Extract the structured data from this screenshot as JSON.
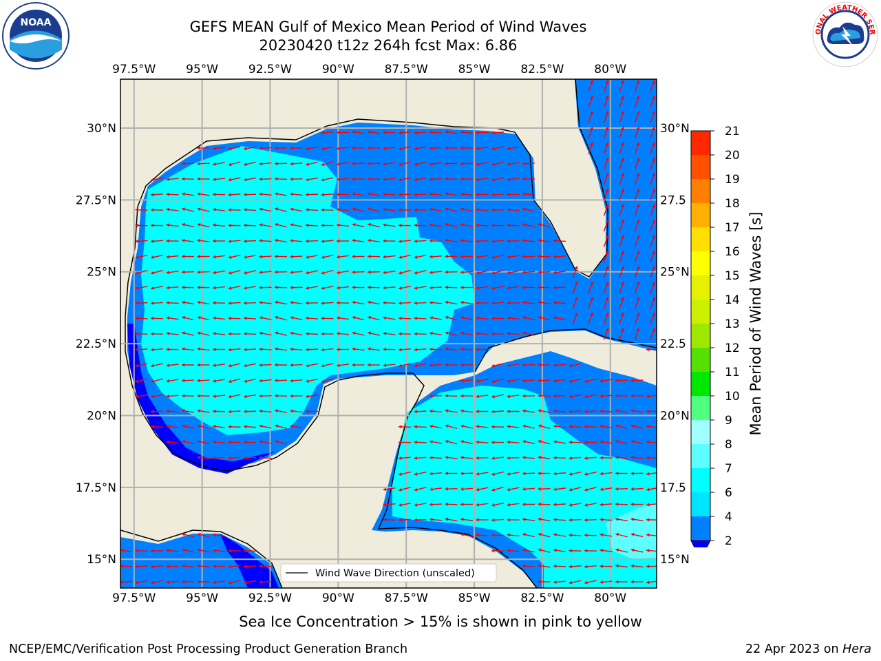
{
  "header": {
    "title_line1": "GEFS MEAN Gulf of Mexico Mean Period of Wind Waves",
    "title_line2": "20230420 t12z 264h fcst   Max: 6.86"
  },
  "logos": {
    "noaa": {
      "text": "NOAA",
      "ring_text": "NATIONAL OCEANIC AND ATMOSPHERIC ADMINISTRATION · U.S. DEPARTMENT OF COMMERCE"
    },
    "nws": {
      "ring_text": "NATIONAL WEATHER SERVICE"
    }
  },
  "map": {
    "lon_labels": [
      "97.5°W",
      "95°W",
      "92.5°W",
      "90°W",
      "87.5°W",
      "85°W",
      "82.5°W",
      "80°W"
    ],
    "lon_values": [
      -97.5,
      -95,
      -92.5,
      -90,
      -87.5,
      -85,
      -82.5,
      -80
    ],
    "lat_labels": [
      "30°N",
      "27.5°N",
      "25°N",
      "22.5°N",
      "20°N",
      "17.5°N",
      "15°N"
    ],
    "lat_labels_right": [
      "30°N",
      "27.5",
      "25°N",
      "22.5",
      "20°N",
      "17.5",
      "15°N"
    ],
    "lat_values": [
      30,
      27.5,
      25,
      22.5,
      20,
      17.5,
      15
    ],
    "extent": {
      "lon_min": -98,
      "lon_max": -78.3,
      "lat_min": 14,
      "lat_max": 31.7
    },
    "legend_text": "Wind Wave Direction (unscaled)",
    "arrow_color": "#ff0000",
    "land_color": "#efecdb"
  },
  "colorbar": {
    "label": "Mean Period of Wind Waves [s]",
    "ticks": [
      "2",
      "4",
      "6",
      "7",
      "8",
      "9",
      "10",
      "11",
      "12",
      "13",
      "14",
      "15",
      "16",
      "17",
      "18",
      "19",
      "20",
      "21"
    ],
    "colors": [
      "#0080ff",
      "#00e5ff",
      "#00ffff",
      "#5cffff",
      "#a0ffff",
      "#50ff80",
      "#00e800",
      "#55e000",
      "#9ee800",
      "#ccf000",
      "#e6f000",
      "#ffff00",
      "#ffe000",
      "#ffb000",
      "#ff8000",
      "#ff5000",
      "#ff2800"
    ],
    "extend_low_color": "#0000ff",
    "extend_high_color": "#ff0000"
  },
  "caption": "Sea Ice Concentration > 15% is shown in pink to yellow",
  "footer": {
    "left": "NCEP/EMC/Verification Post Processing Product Generation Branch",
    "right_prefix": "22 Apr 2023 on ",
    "right_machine": "Hera"
  }
}
